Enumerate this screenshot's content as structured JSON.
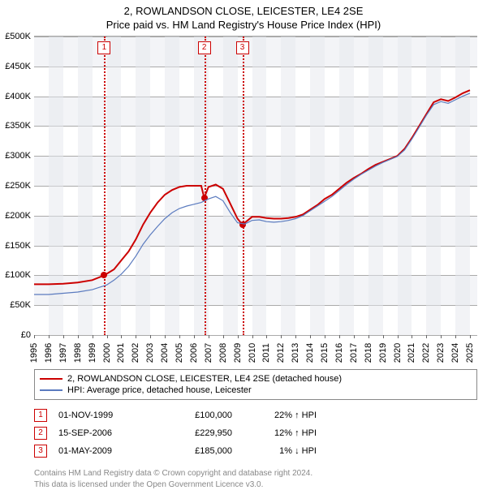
{
  "title": "2, ROWLANDSON CLOSE, LEICESTER, LE4 2SE",
  "subtitle": "Price paid vs. HM Land Registry's House Price Index (HPI)",
  "chart": {
    "type": "line",
    "background_color": "#ffffff",
    "band_odd_color": "#f3f4f7",
    "band_even_color": "#ffffff",
    "grid_color": "#aaaaaa",
    "x": {
      "min": 1995,
      "max": 2025.5,
      "ticks": [
        1995,
        1996,
        1997,
        1998,
        1999,
        2000,
        2001,
        2002,
        2003,
        2004,
        2005,
        2006,
        2007,
        2008,
        2009,
        2010,
        2011,
        2012,
        2013,
        2014,
        2015,
        2016,
        2017,
        2018,
        2019,
        2020,
        2021,
        2022,
        2023,
        2024,
        2025
      ]
    },
    "y": {
      "min": 0,
      "max": 500000,
      "ticks": [
        0,
        50000,
        100000,
        150000,
        200000,
        250000,
        300000,
        350000,
        400000,
        450000,
        500000
      ],
      "tick_labels": [
        "£0",
        "£50K",
        "£100K",
        "£150K",
        "£200K",
        "£250K",
        "£300K",
        "£350K",
        "£400K",
        "£450K",
        "£500K"
      ]
    },
    "series": [
      {
        "name": "2, ROWLANDSON CLOSE, LEICESTER, LE4 2SE (detached house)",
        "color": "#cc0000",
        "width": 2,
        "points": [
          [
            1995.0,
            85000
          ],
          [
            1996.0,
            85000
          ],
          [
            1997.0,
            86000
          ],
          [
            1998.0,
            88000
          ],
          [
            1999.0,
            92000
          ],
          [
            1999.83,
            100000
          ],
          [
            2000.5,
            110000
          ],
          [
            2001.0,
            125000
          ],
          [
            2001.5,
            140000
          ],
          [
            2002.0,
            160000
          ],
          [
            2002.5,
            185000
          ],
          [
            2003.0,
            205000
          ],
          [
            2003.5,
            222000
          ],
          [
            2004.0,
            235000
          ],
          [
            2004.5,
            243000
          ],
          [
            2005.0,
            248000
          ],
          [
            2005.5,
            250000
          ],
          [
            2006.0,
            250000
          ],
          [
            2006.5,
            250000
          ],
          [
            2006.71,
            229950
          ],
          [
            2007.0,
            248000
          ],
          [
            2007.5,
            252000
          ],
          [
            2008.0,
            245000
          ],
          [
            2008.5,
            220000
          ],
          [
            2009.0,
            195000
          ],
          [
            2009.33,
            185000
          ],
          [
            2009.7,
            192000
          ],
          [
            2010.0,
            198000
          ],
          [
            2010.5,
            198000
          ],
          [
            2011.0,
            196000
          ],
          [
            2011.5,
            195000
          ],
          [
            2012.0,
            195000
          ],
          [
            2012.5,
            196000
          ],
          [
            2013.0,
            198000
          ],
          [
            2013.5,
            202000
          ],
          [
            2014.0,
            210000
          ],
          [
            2014.5,
            218000
          ],
          [
            2015.0,
            228000
          ],
          [
            2015.5,
            235000
          ],
          [
            2016.0,
            245000
          ],
          [
            2016.5,
            255000
          ],
          [
            2017.0,
            263000
          ],
          [
            2017.5,
            270000
          ],
          [
            2018.0,
            278000
          ],
          [
            2018.5,
            285000
          ],
          [
            2019.0,
            290000
          ],
          [
            2019.5,
            295000
          ],
          [
            2020.0,
            300000
          ],
          [
            2020.5,
            312000
          ],
          [
            2021.0,
            330000
          ],
          [
            2021.5,
            350000
          ],
          [
            2022.0,
            370000
          ],
          [
            2022.5,
            390000
          ],
          [
            2023.0,
            395000
          ],
          [
            2023.5,
            392000
          ],
          [
            2024.0,
            398000
          ],
          [
            2024.5,
            405000
          ],
          [
            2025.0,
            410000
          ]
        ]
      },
      {
        "name": "HPI: Average price, detached house, Leicester",
        "color": "#5b7bbf",
        "width": 1.2,
        "points": [
          [
            1995.0,
            68000
          ],
          [
            1996.0,
            68000
          ],
          [
            1997.0,
            70000
          ],
          [
            1998.0,
            72000
          ],
          [
            1999.0,
            76000
          ],
          [
            2000.0,
            84000
          ],
          [
            2000.5,
            92000
          ],
          [
            2001.0,
            102000
          ],
          [
            2001.5,
            115000
          ],
          [
            2002.0,
            132000
          ],
          [
            2002.5,
            152000
          ],
          [
            2003.0,
            168000
          ],
          [
            2003.5,
            182000
          ],
          [
            2004.0,
            195000
          ],
          [
            2004.5,
            205000
          ],
          [
            2005.0,
            212000
          ],
          [
            2005.5,
            216000
          ],
          [
            2006.0,
            219000
          ],
          [
            2006.5,
            222000
          ],
          [
            2007.0,
            228000
          ],
          [
            2007.5,
            232000
          ],
          [
            2008.0,
            225000
          ],
          [
            2008.5,
            205000
          ],
          [
            2009.0,
            188000
          ],
          [
            2009.5,
            186000
          ],
          [
            2010.0,
            192000
          ],
          [
            2010.5,
            193000
          ],
          [
            2011.0,
            190000
          ],
          [
            2011.5,
            189000
          ],
          [
            2012.0,
            190000
          ],
          [
            2012.5,
            192000
          ],
          [
            2013.0,
            195000
          ],
          [
            2013.5,
            200000
          ],
          [
            2014.0,
            208000
          ],
          [
            2014.5,
            216000
          ],
          [
            2015.0,
            224000
          ],
          [
            2015.5,
            232000
          ],
          [
            2016.0,
            242000
          ],
          [
            2016.5,
            252000
          ],
          [
            2017.0,
            261000
          ],
          [
            2017.5,
            269000
          ],
          [
            2018.0,
            276000
          ],
          [
            2018.5,
            283000
          ],
          [
            2019.0,
            289000
          ],
          [
            2019.5,
            294000
          ],
          [
            2020.0,
            299000
          ],
          [
            2020.5,
            310000
          ],
          [
            2021.0,
            328000
          ],
          [
            2021.5,
            348000
          ],
          [
            2022.0,
            368000
          ],
          [
            2022.5,
            386000
          ],
          [
            2023.0,
            391000
          ],
          [
            2023.5,
            388000
          ],
          [
            2024.0,
            394000
          ],
          [
            2024.5,
            400000
          ],
          [
            2025.0,
            405000
          ]
        ]
      }
    ],
    "markers": [
      {
        "n": "1",
        "x": 1999.83,
        "y": 100000,
        "color": "#cc0000"
      },
      {
        "n": "2",
        "x": 2006.71,
        "y": 229950,
        "color": "#cc0000"
      },
      {
        "n": "3",
        "x": 2009.33,
        "y": 185000,
        "color": "#cc0000"
      }
    ]
  },
  "legend": [
    {
      "label": "2, ROWLANDSON CLOSE, LEICESTER, LE4 2SE (detached house)",
      "color": "#cc0000",
      "width": 2
    },
    {
      "label": "HPI: Average price, detached house, Leicester",
      "color": "#5b7bbf",
      "width": 1.2
    }
  ],
  "events": [
    {
      "n": "1",
      "date": "01-NOV-1999",
      "price": "£100,000",
      "delta": "22% ↑ HPI",
      "color": "#cc0000"
    },
    {
      "n": "2",
      "date": "15-SEP-2006",
      "price": "£229,950",
      "delta": "12% ↑ HPI",
      "color": "#cc0000"
    },
    {
      "n": "3",
      "date": "01-MAY-2009",
      "price": "£185,000",
      "delta": "1% ↓ HPI",
      "color": "#cc0000"
    }
  ],
  "footer_line1": "Contains HM Land Registry data © Crown copyright and database right 2024.",
  "footer_line2": "This data is licensed under the Open Government Licence v3.0."
}
